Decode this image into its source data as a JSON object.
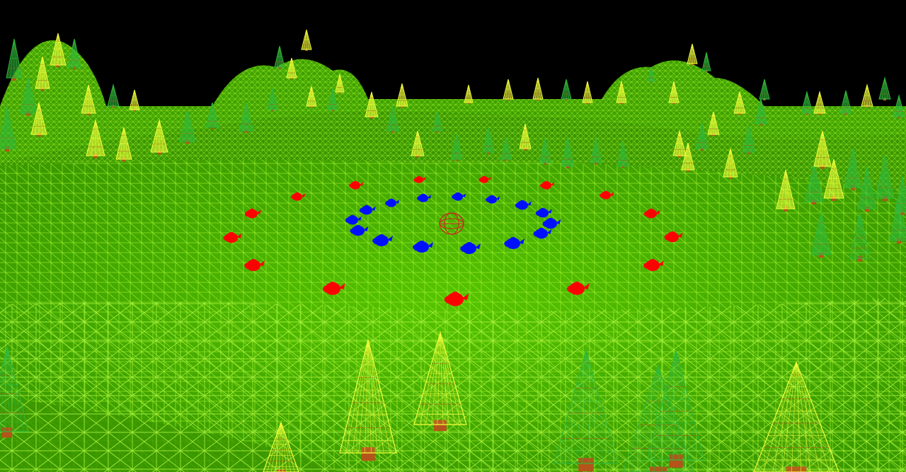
{
  "scene": {
    "kind": "3d-wireframe-terrain",
    "colors": {
      "sky": "#000000",
      "terrain_fill": "#4cb800",
      "terrain_wire": "#9cf02a",
      "grass_dark": "#3fa000",
      "tree_green": "#1e8a2a",
      "tree_green_light": "#2fb83a",
      "tree_yellow": "#f2ff3a",
      "trunk": "#b5541a",
      "teapot_red": "#ff0000",
      "teapot_blue": "#0010ff",
      "target_ring": "#d02020"
    },
    "objects": {
      "inner_ring_teapots": {
        "count": 16,
        "color": "blue"
      },
      "outer_ring_teapots": {
        "count": 16,
        "color": "red"
      },
      "center_marker": "wireframe-sphere"
    }
  }
}
